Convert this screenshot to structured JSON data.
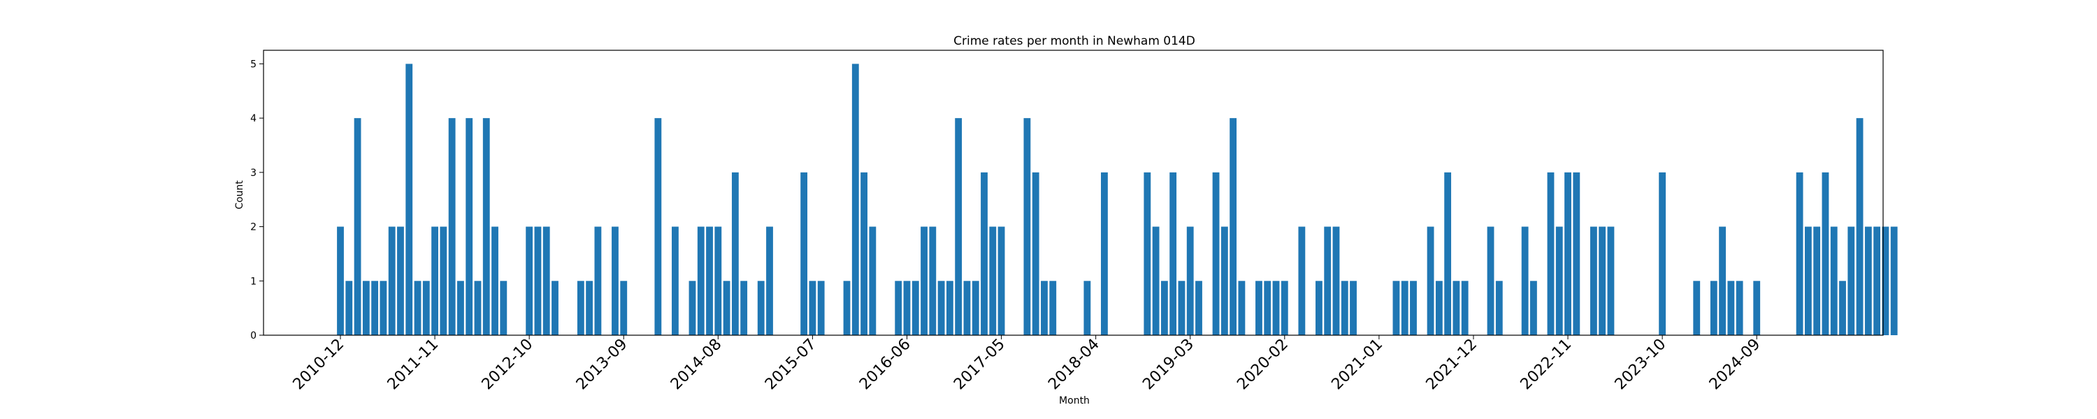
{
  "chart_data": {
    "type": "bar",
    "title": "Crime rates per month in Newham 014D",
    "xlabel": "Month",
    "ylabel": "Count",
    "ylim": [
      0,
      5.25
    ],
    "yticks": [
      0,
      1,
      2,
      3,
      4,
      5
    ],
    "xtick_labels": [
      "2010-12",
      "2011-11",
      "2012-10",
      "2013-09",
      "2014-08",
      "2015-07",
      "2016-06",
      "2017-05",
      "2018-04",
      "2019-03",
      "2020-02",
      "2021-01",
      "2021-12",
      "2022-11",
      "2023-10",
      "2024-09"
    ],
    "color": "#1f77b4",
    "start_month": "2010-12",
    "values": [
      2,
      1,
      4,
      1,
      1,
      1,
      2,
      2,
      5,
      1,
      1,
      2,
      2,
      4,
      1,
      4,
      1,
      4,
      2,
      1,
      0,
      0,
      2,
      2,
      2,
      1,
      0,
      0,
      1,
      1,
      2,
      0,
      2,
      1,
      0,
      0,
      0,
      4,
      0,
      2,
      0,
      1,
      2,
      2,
      2,
      1,
      3,
      1,
      0,
      1,
      2,
      0,
      0,
      0,
      3,
      1,
      1,
      0,
      0,
      1,
      5,
      3,
      2,
      0,
      0,
      1,
      1,
      1,
      2,
      2,
      1,
      1,
      4,
      1,
      1,
      3,
      2,
      2,
      0,
      0,
      4,
      3,
      1,
      1,
      0,
      0,
      0,
      1,
      0,
      3,
      0,
      0,
      0,
      0,
      3,
      2,
      1,
      3,
      1,
      2,
      1,
      0,
      3,
      2,
      4,
      1,
      0,
      1,
      1,
      1,
      1,
      0,
      2,
      0,
      1,
      2,
      2,
      1,
      1,
      0,
      0,
      0,
      0,
      1,
      1,
      1,
      0,
      2,
      1,
      3,
      1,
      1,
      0,
      0,
      2,
      1,
      0,
      0,
      2,
      1,
      0,
      3,
      2,
      3,
      3,
      0,
      2,
      2,
      2,
      0,
      0,
      0,
      0,
      0,
      3,
      0,
      0,
      0,
      1,
      0,
      1,
      2,
      1,
      1,
      0,
      1,
      0,
      0,
      0,
      0,
      3,
      2,
      2,
      3,
      2,
      1,
      2,
      4,
      2,
      2,
      2,
      2
    ]
  }
}
